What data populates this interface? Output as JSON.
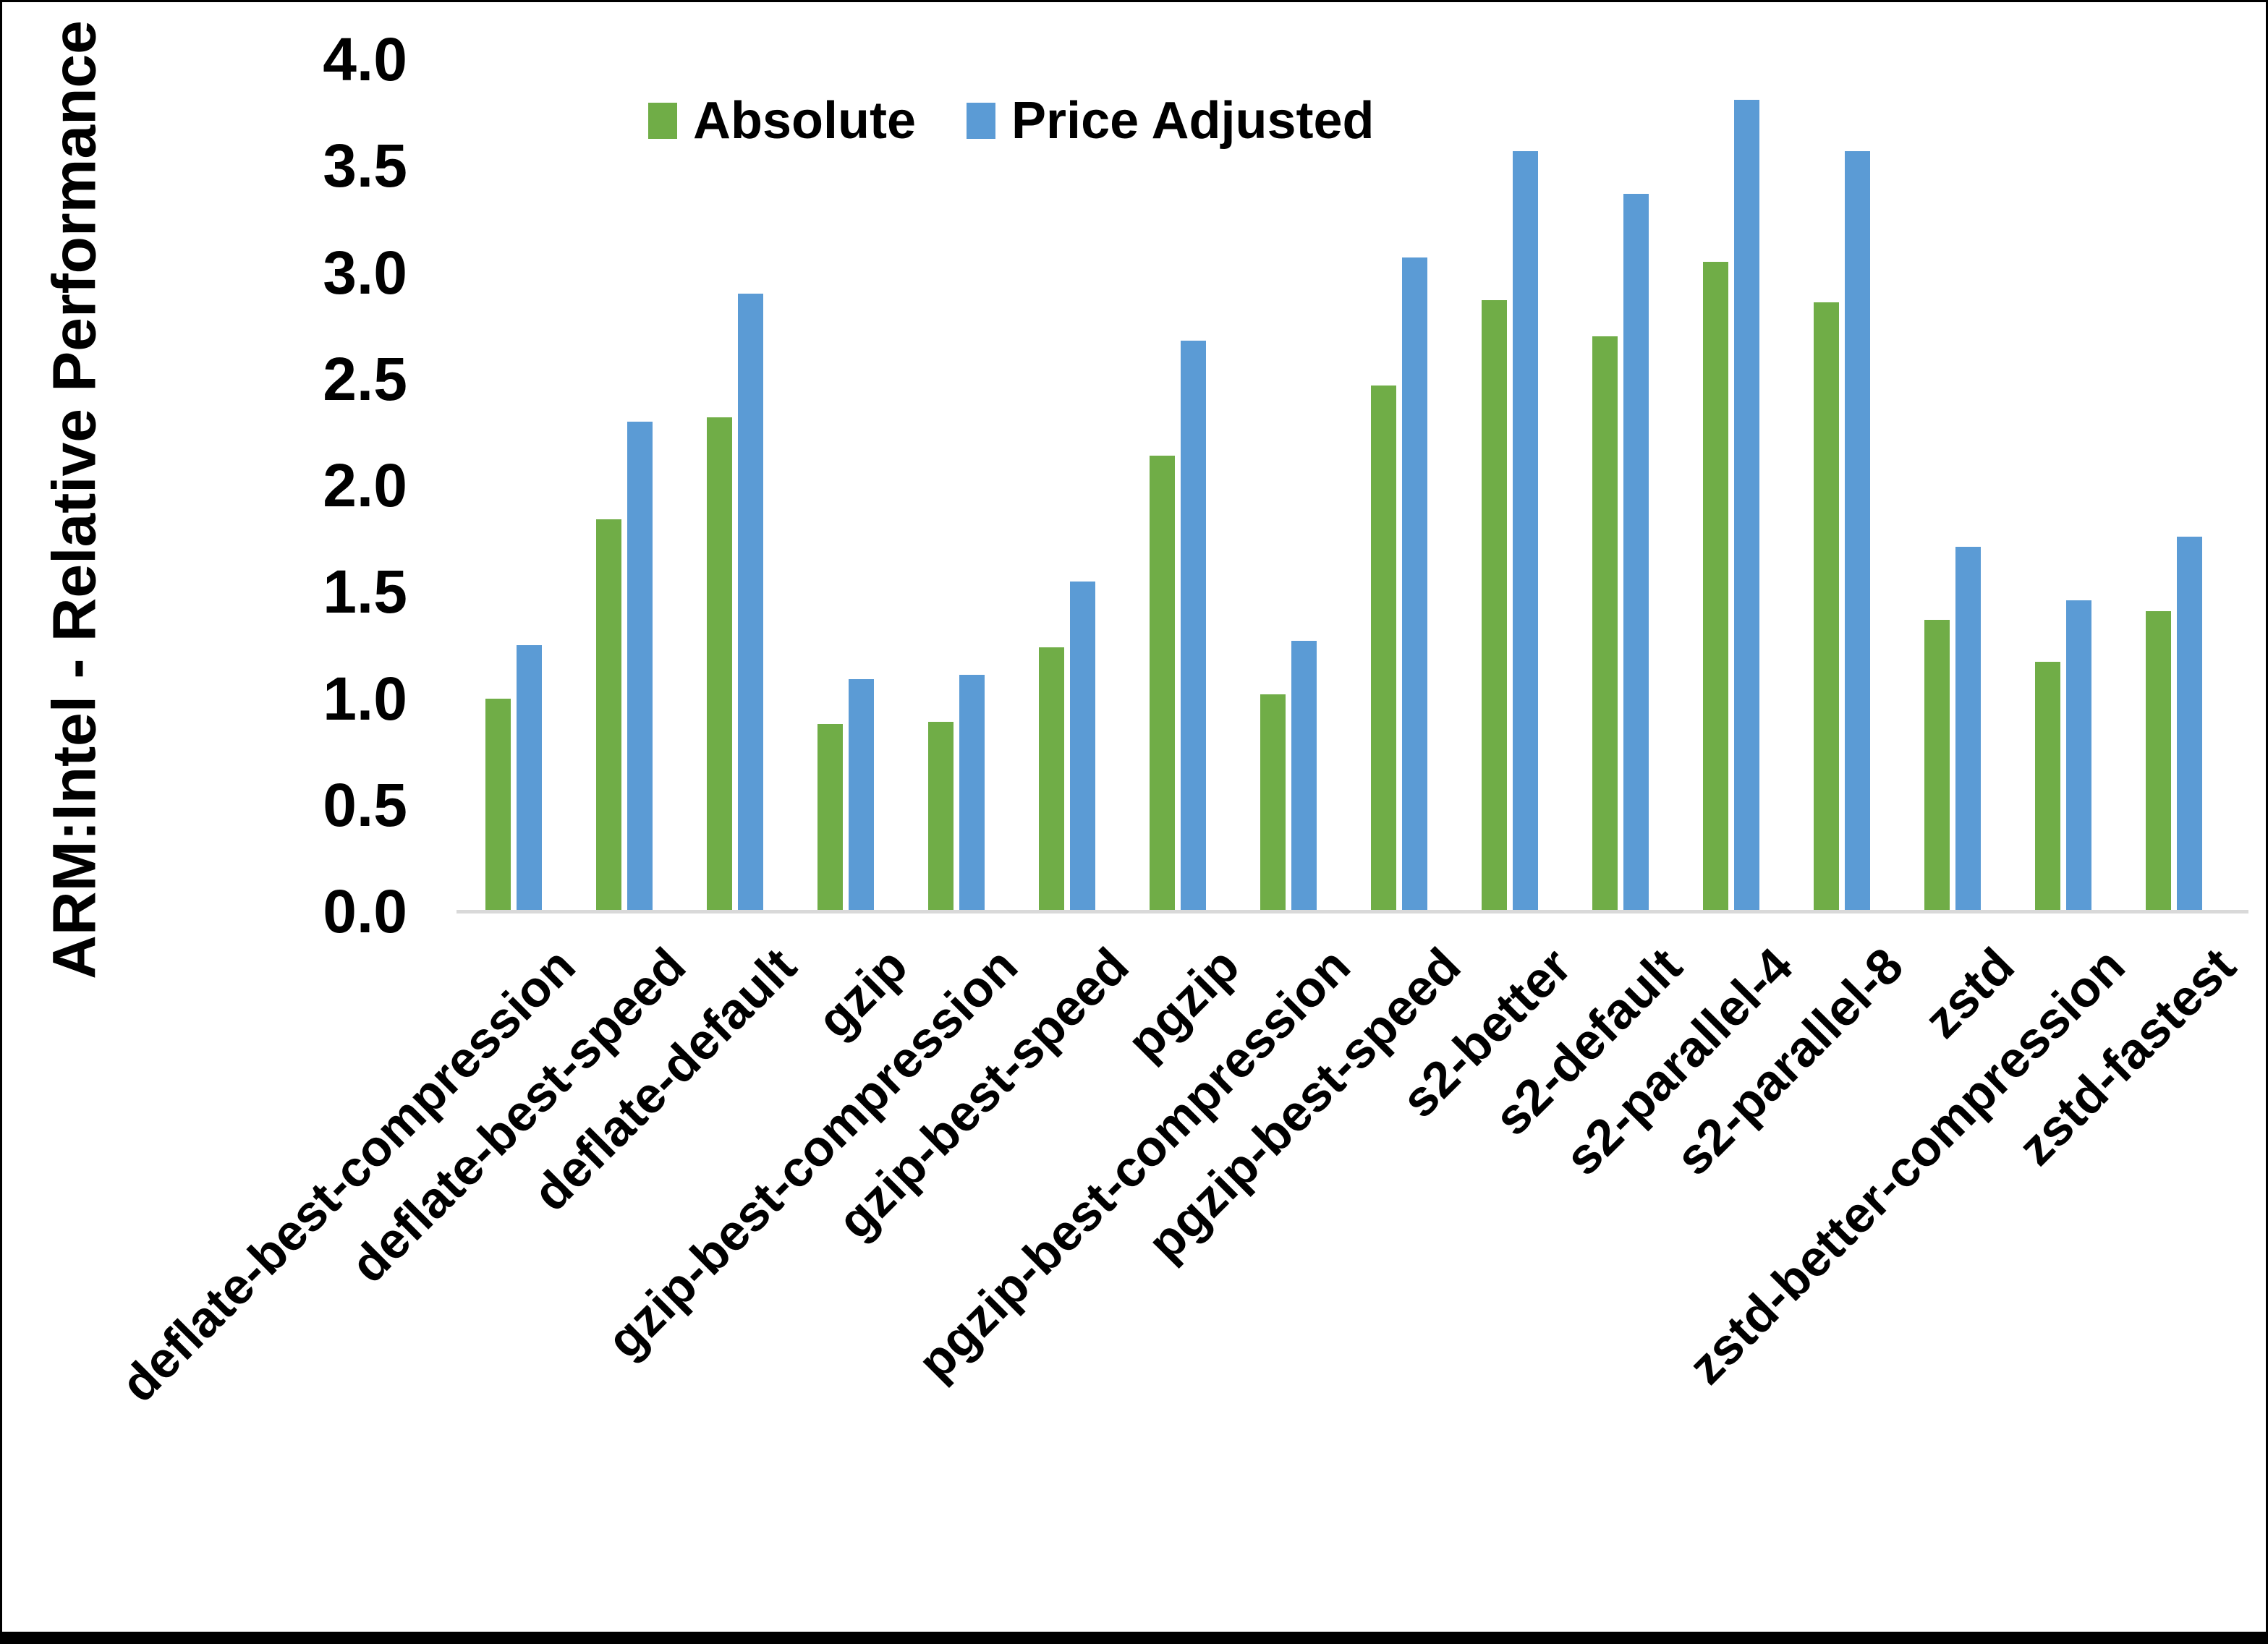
{
  "chart_data": {
    "type": "bar",
    "title": "",
    "xlabel": "",
    "ylabel": "ARM:Intel - Relative Performance",
    "ylim": [
      0.0,
      4.0
    ],
    "ytick_step": 0.5,
    "yticks": [
      "0.0",
      "0.5",
      "1.0",
      "1.5",
      "2.0",
      "2.5",
      "3.0",
      "3.5",
      "4.0"
    ],
    "grid": false,
    "legend_position": "top-center",
    "categories": [
      "deflate-best-compression",
      "deflate-best-speed",
      "deflate-default",
      "gzip",
      "gzip-best-compression",
      "gzip-best-speed",
      "pgzip",
      "pgzip-best-compression",
      "pgzip-best-speed",
      "s2-better",
      "s2-default",
      "s2-parallel-4",
      "s2-parallel-8",
      "zstd",
      "zstd-better-compression",
      "zstd-fastest"
    ],
    "series": [
      {
        "name": "Absolute",
        "color": "#70AD47",
        "values": [
          1.0,
          1.84,
          2.32,
          0.88,
          0.89,
          1.24,
          2.14,
          1.02,
          2.47,
          2.87,
          2.7,
          3.05,
          2.86,
          1.37,
          1.17,
          1.41
        ]
      },
      {
        "name": "Price Adjusted",
        "color": "#5B9BD5",
        "values": [
          1.25,
          2.3,
          2.9,
          1.09,
          1.11,
          1.55,
          2.68,
          1.27,
          3.07,
          3.57,
          3.37,
          3.81,
          3.57,
          1.71,
          1.46,
          1.76
        ]
      }
    ]
  },
  "legend": {
    "items": [
      {
        "label": "Absolute",
        "color": "#70AD47"
      },
      {
        "label": "Price Adjusted",
        "color": "#5B9BD5"
      }
    ]
  },
  "colors": {
    "absolute": "#70AD47",
    "price_adjusted": "#5B9BD5",
    "axis_line": "#D9D9D9",
    "text": "#000000",
    "background": "#FFFFFF",
    "border": "#000000"
  }
}
